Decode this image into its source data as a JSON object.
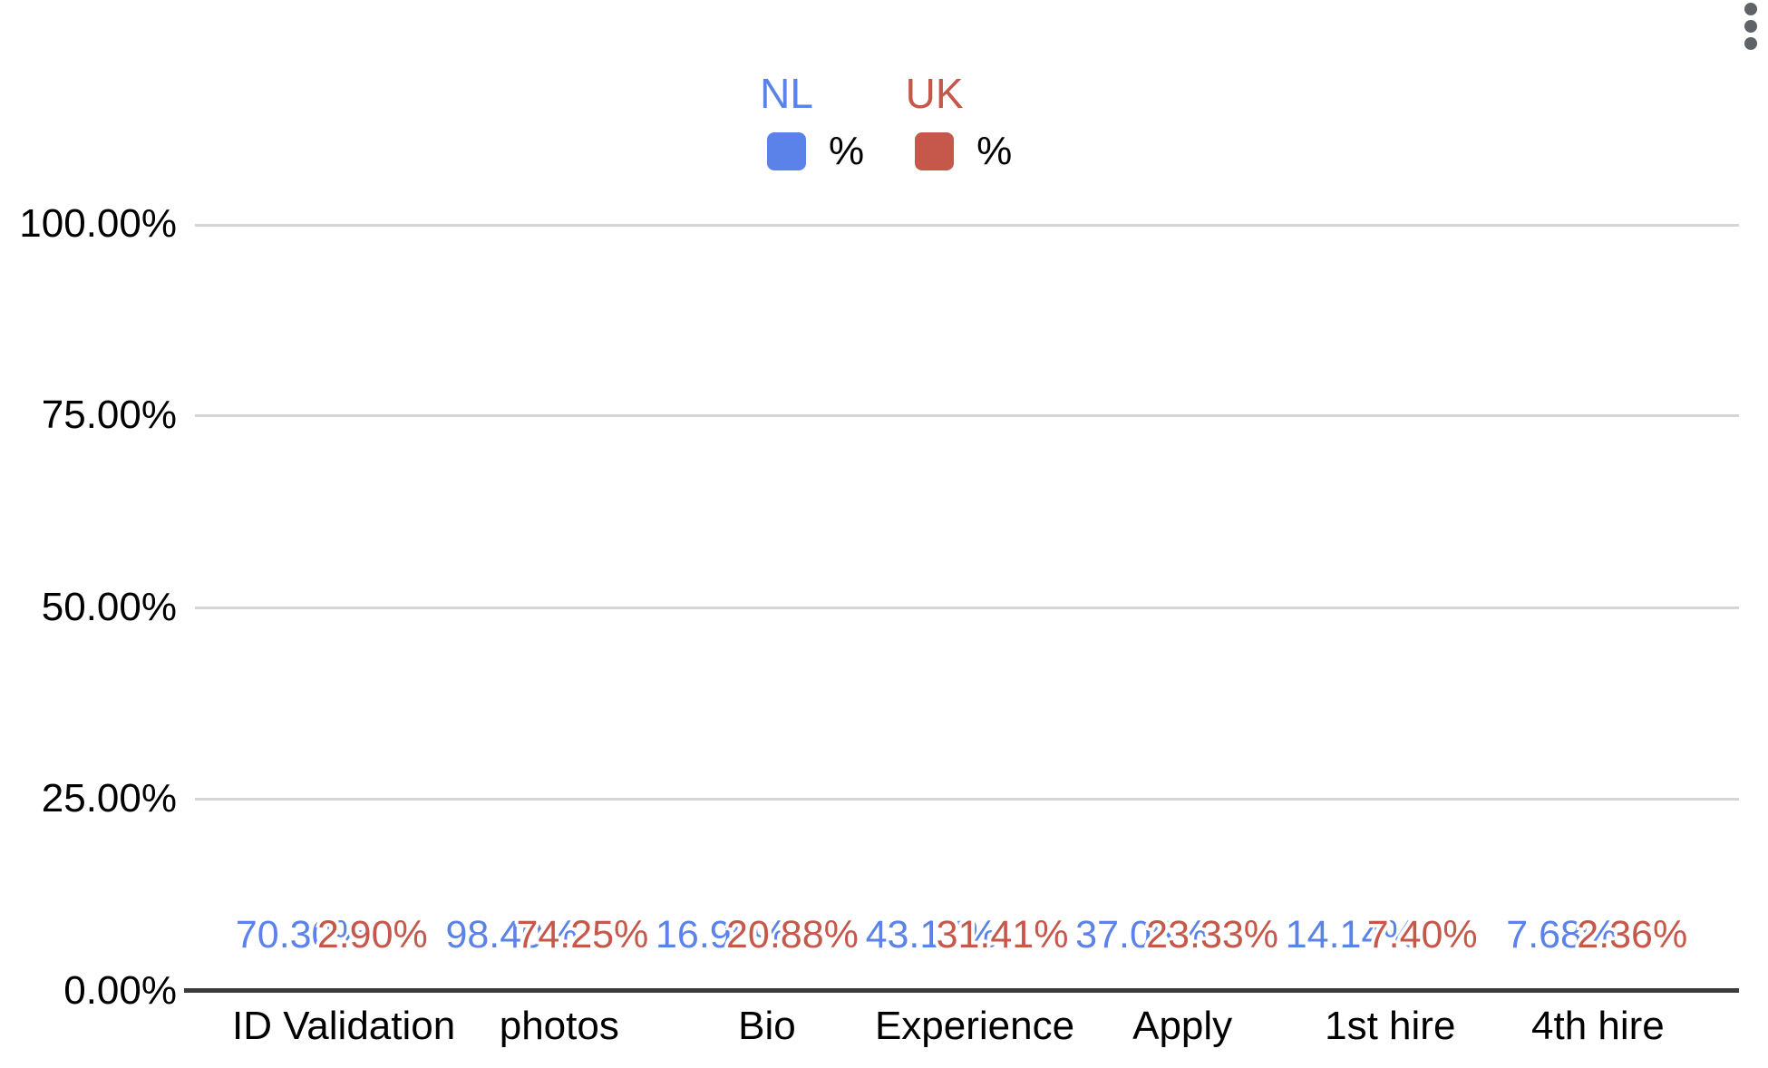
{
  "menu": {
    "label": "more options"
  },
  "chart_data": {
    "type": "bar",
    "title": "",
    "xlabel": "",
    "ylabel": "",
    "categories": [
      "ID Validation",
      "photos",
      "Bio",
      "Experience",
      "Apply",
      "1st hire",
      "4th hire"
    ],
    "series": [
      {
        "name": "NL",
        "unit_label": "%",
        "color": "#5b82e8",
        "values": [
          70.3,
          98.4,
          16.96,
          43.17,
          37.05,
          14.14,
          7.68
        ],
        "labels": [
          "70.30%",
          "98.40%",
          "16.96%",
          "43.17%",
          "37.05%",
          "14.14%",
          "7.68%"
        ]
      },
      {
        "name": "UK",
        "unit_label": "%",
        "color": "#c5584a",
        "values": [
          2.9,
          74.25,
          20.88,
          31.41,
          23.33,
          7.4,
          2.36
        ],
        "labels": [
          "2.90%",
          "74.25%",
          "20.88%",
          "31.41%",
          "23.33%",
          "7.40%",
          "2.36%"
        ]
      }
    ],
    "ylim": [
      0,
      100
    ],
    "yticks": [
      "0.00%",
      "25.00%",
      "50.00%",
      "75.00%",
      "100.00%"
    ],
    "grid": true,
    "legend_position": "top",
    "colors": {
      "axis_text": "#000000",
      "gridline": "#d5d5d5",
      "baseline": "#3c3c3c",
      "menu_dots": "#5f6368"
    }
  }
}
